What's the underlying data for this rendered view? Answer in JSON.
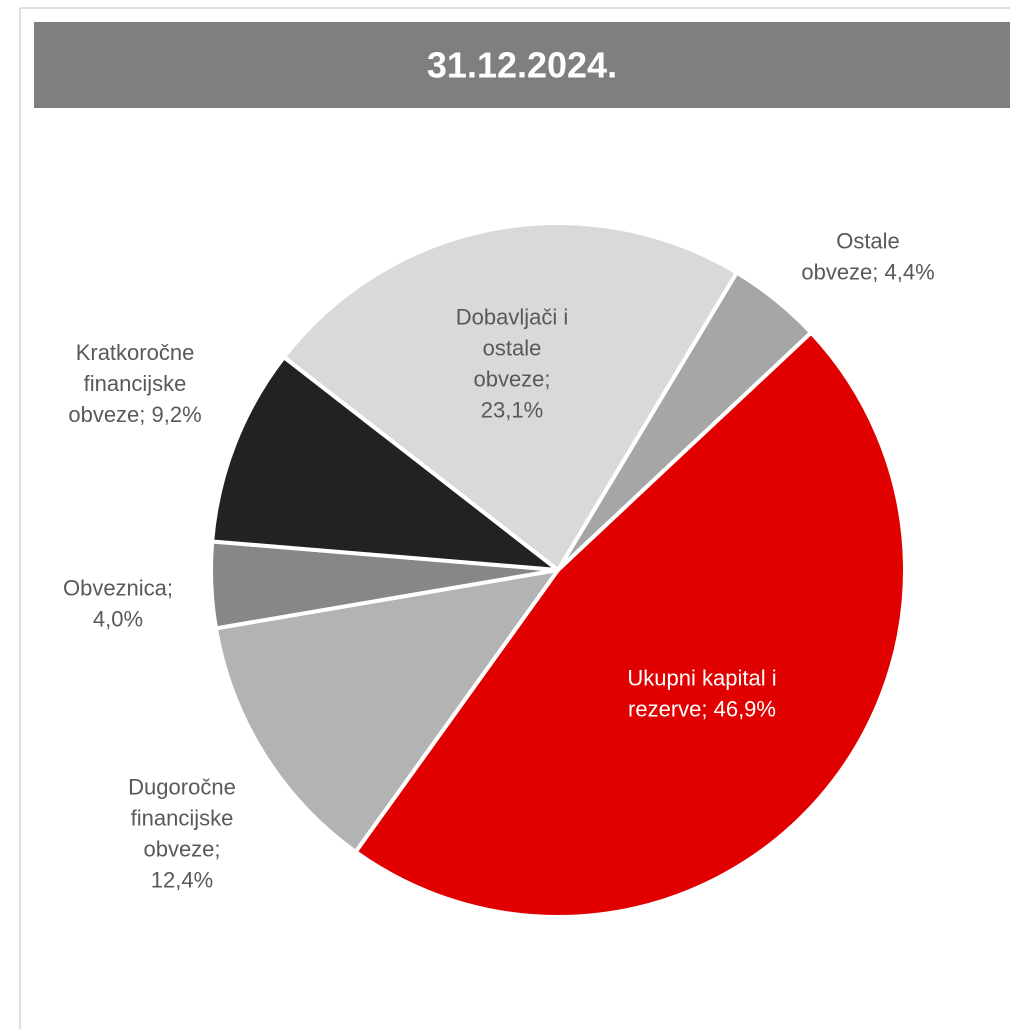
{
  "chart_data": {
    "type": "pie",
    "title": "31.12.2024.",
    "start_angle": 31,
    "values": [
      4.4,
      46.9,
      12.4,
      4.0,
      9.2,
      23.1
    ],
    "value_labels": [
      [
        "Ostale",
        "obveze; 4,4%"
      ],
      [
        "Ukupni kapital i",
        "rezerve; 46,9%"
      ],
      [
        "Dugoročne",
        "financijske",
        "obveze;",
        "12,4%"
      ],
      [
        "Obveznica;",
        "4,0%"
      ],
      [
        "Kratkoročne",
        "financijske",
        "obveze; 9,2%"
      ],
      [
        "Dobavljači i",
        "ostale",
        "obveze;",
        "23,1%"
      ]
    ],
    "colors": [
      "#a6a6a6",
      "#e00000",
      "#b3b3b3",
      "#878787",
      "#222222",
      "#d9d9d9"
    ]
  }
}
